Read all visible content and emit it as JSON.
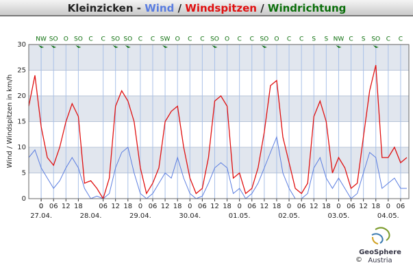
{
  "chart_data": {
    "type": "line",
    "station": "Kleinzicken",
    "dash": "-",
    "slash": "/",
    "y_label": "Wind / Windspitzen in km/h",
    "ylim": [
      0,
      30
    ],
    "yticks": [
      0,
      5,
      10,
      15,
      20,
      25,
      30
    ],
    "xlim": [
      -6,
      178
    ],
    "xticks": [
      0,
      {
        "value": 6,
        "label": "06"
      },
      {
        "value": 12,
        "label": "12"
      },
      {
        "value": 18,
        "label": "18"
      },
      0,
      {
        "value": 30,
        "label": "06"
      },
      {
        "value": 36,
        "label": "12"
      },
      {
        "value": 42,
        "label": "18"
      },
      {
        "value": 48,
        "label": "0"
      },
      {
        "value": 54,
        "label": "06"
      },
      {
        "value": 60,
        "label": "12"
      },
      {
        "value": 66,
        "label": "18"
      },
      {
        "value": 72,
        "label": "0"
      },
      {
        "value": 78,
        "label": "06"
      },
      {
        "value": 84,
        "label": "12"
      },
      {
        "value": 90,
        "label": "18"
      },
      {
        "value": 96,
        "label": "0"
      },
      {
        "value": 102,
        "label": "06"
      },
      {
        "value": 108,
        "label": "12"
      },
      {
        "value": 114,
        "label": "18"
      },
      {
        "value": 120,
        "label": "0"
      },
      {
        "value": 126,
        "label": "06"
      },
      {
        "value": 132,
        "label": "12"
      },
      {
        "value": 138,
        "label": "18"
      },
      {
        "value": 144,
        "label": "0"
      },
      {
        "value": 150,
        "label": "06"
      },
      {
        "value": 156,
        "label": "12"
      },
      {
        "value": 162,
        "label": "18"
      },
      {
        "value": 168,
        "label": "0"
      },
      {
        "value": 174,
        "label": "06"
      }
    ],
    "date_ticks": [
      {
        "value": 0,
        "label": "27.04."
      },
      {
        "value": 24,
        "label": "28.04."
      },
      {
        "value": 48,
        "label": "29.04."
      },
      {
        "value": 72,
        "label": "30.04."
      },
      {
        "value": 96,
        "label": "01.05."
      },
      {
        "value": 120,
        "label": "02.05."
      },
      {
        "value": 144,
        "label": "03.05."
      },
      {
        "value": 168,
        "label": "04.05."
      }
    ],
    "grid": true,
    "x": [
      -6,
      -3,
      0,
      3,
      6,
      9,
      12,
      15,
      18,
      21,
      24,
      27,
      30,
      33,
      36,
      39,
      42,
      45,
      48,
      51,
      54,
      57,
      60,
      63,
      66,
      69,
      72,
      75,
      78,
      81,
      84,
      87,
      90,
      93,
      96,
      99,
      102,
      105,
      108,
      111,
      114,
      117,
      120,
      123,
      126,
      129,
      132,
      135,
      138,
      141,
      144,
      147,
      150,
      153,
      156,
      159,
      162,
      165,
      168,
      171,
      174,
      177
    ],
    "series": [
      {
        "name": "Wind",
        "color": "#5a7de0",
        "values": [
          8,
          9.5,
          6,
          4,
          2,
          3.5,
          6,
          8,
          6,
          2,
          0,
          0.5,
          0,
          1,
          6,
          9,
          10,
          5,
          1,
          0,
          1,
          3,
          5,
          4,
          8,
          4,
          1,
          0,
          0.5,
          3,
          6,
          7,
          6,
          1,
          2,
          0,
          1,
          3,
          6,
          9,
          12,
          5,
          2,
          0,
          0,
          1,
          6,
          8,
          4,
          2,
          4,
          2,
          0,
          1,
          5,
          9,
          8,
          2,
          3,
          4,
          2,
          2
        ]
      },
      {
        "name": "Windspitzen",
        "color": "#e01010",
        "values": [
          18,
          24,
          14,
          8,
          6.5,
          10,
          15,
          18.5,
          16,
          3,
          3.5,
          2,
          0,
          4,
          18,
          21,
          19,
          15,
          6,
          1,
          3,
          6,
          15,
          17,
          18,
          10,
          4,
          1,
          2,
          8,
          19,
          20,
          18,
          4,
          5,
          1,
          2,
          6,
          13,
          22,
          23,
          12,
          7,
          2,
          1,
          3,
          16,
          19,
          15,
          5,
          8,
          6,
          2,
          3,
          12,
          21,
          26,
          8,
          8,
          10,
          7,
          8
        ]
      }
    ],
    "directions": {
      "name": "Windrichtung",
      "color": "#0a6e0a",
      "x": [
        0,
        6,
        12,
        18,
        24,
        30,
        36,
        42,
        48,
        54,
        60,
        66,
        72,
        78,
        84,
        90,
        96,
        102,
        108,
        114,
        120,
        126,
        132,
        138,
        144,
        150,
        156,
        162,
        168,
        174
      ],
      "labels": [
        "NW",
        "SO",
        "O",
        "SO",
        "C",
        "C",
        "SO",
        "SO",
        "C",
        "C",
        "SW",
        "O",
        "C",
        "C",
        "SO",
        "O",
        "C",
        "C",
        "SO",
        "O",
        "C",
        "C",
        "S",
        "S",
        "NW",
        "C",
        "S",
        "SO",
        "C",
        "C"
      ]
    },
    "logo": {
      "name": "GeoSphere",
      "sub": "Austria",
      "copyright": "©"
    }
  }
}
